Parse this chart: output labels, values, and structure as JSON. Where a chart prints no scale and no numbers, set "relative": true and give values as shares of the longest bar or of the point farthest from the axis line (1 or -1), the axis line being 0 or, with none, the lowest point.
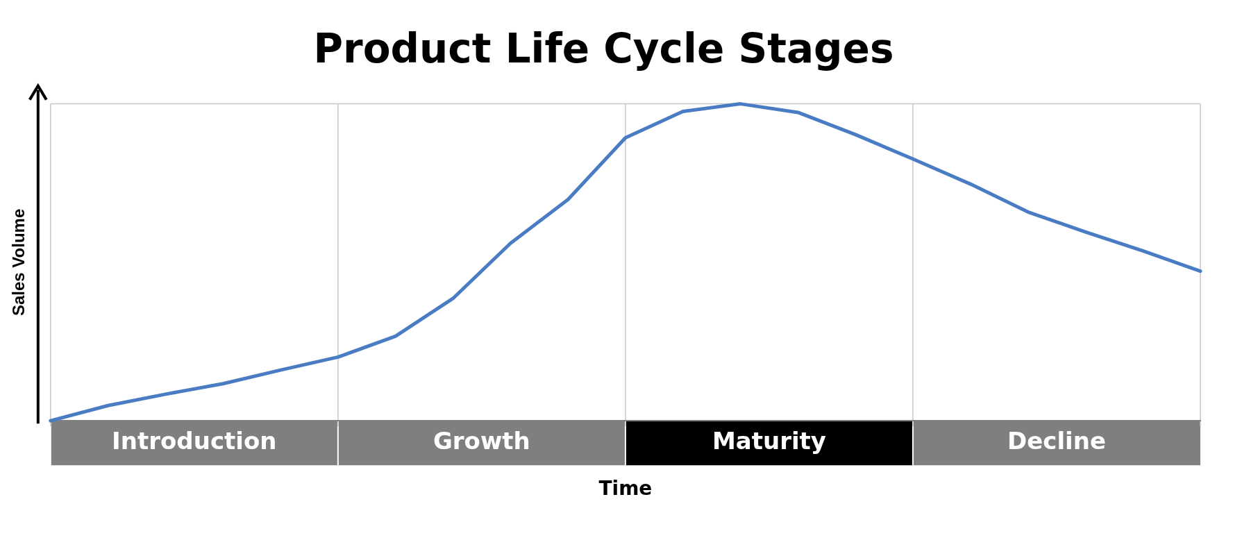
{
  "chart_data": {
    "type": "line",
    "title": "Product Life Cycle Stages",
    "xlabel": "Time",
    "ylabel": "Sales Volume",
    "relative": true,
    "legend": false,
    "grid": true,
    "marker": "none",
    "line_style": "solid",
    "categories": [
      null,
      null,
      null,
      null,
      null,
      null,
      null,
      null,
      null,
      null,
      null,
      null,
      null,
      null,
      null,
      null,
      null,
      null,
      null,
      null,
      null
    ],
    "series": [
      {
        "color": "#4a7cc4",
        "values": [
          0,
          0.048,
          0.084,
          0.117,
          0.16,
          0.201,
          0.267,
          0.386,
          0.56,
          0.698,
          0.893,
          0.976,
          1,
          0.973,
          0.903,
          0.826,
          0.747,
          0.659,
          0.596,
          0.536,
          0.472
        ]
      }
    ],
    "annotations": [
      "Introduction",
      "Growth",
      "Maturity",
      "Decline"
    ]
  }
}
